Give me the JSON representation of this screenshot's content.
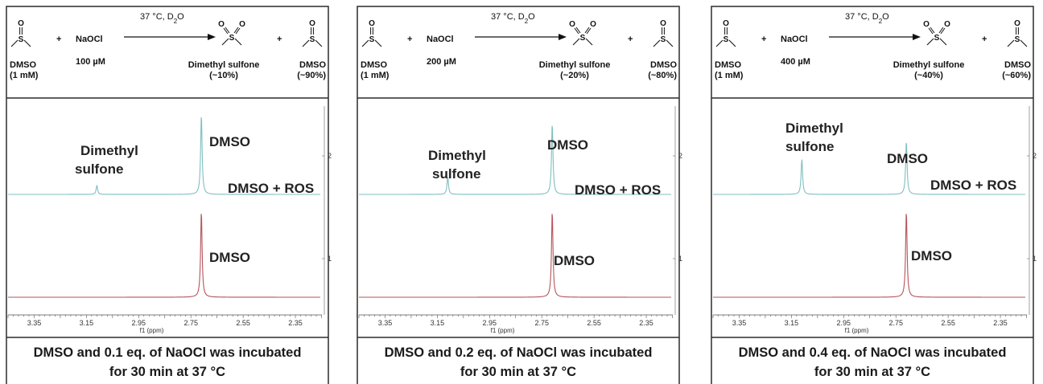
{
  "panels": [
    {
      "reaction": {
        "reactant_name": "DMSO",
        "reactant_amount": "(1 mM)",
        "plus": "+",
        "reagent": "NaOCl",
        "reagent_amount": "100 µM",
        "conditions": "37 °C, D",
        "conditions_sub": "2",
        "conditions_tail": "O",
        "product_name": "Dimethyl sulfone",
        "product_amount": "(~10%)",
        "remaining_name": "DMSO",
        "remaining_amount": "(~90%)"
      },
      "labels": {
        "sulfone_line1": "Dimethyl",
        "sulfone_line2": "sulfone",
        "dmso_top": "DMSO",
        "dmso_ros": "DMSO + ROS",
        "dmso_bottom": "DMSO"
      },
      "caption_line1": "DMSO and 0.1 eq. of NaOCl was incubated",
      "caption_line2": "for 30 min at 37 °C"
    },
    {
      "reaction": {
        "reactant_name": "DMSO",
        "reactant_amount": "(1 mM)",
        "plus": "+",
        "reagent": "NaOCl",
        "reagent_amount": "200 µM",
        "conditions": "37 °C, D",
        "conditions_sub": "2",
        "conditions_tail": "O",
        "product_name": "Dimethyl sulfone",
        "product_amount": "(~20%)",
        "remaining_name": "DMSO",
        "remaining_amount": "(~80%)"
      },
      "labels": {
        "sulfone_line1": "Dimethyl",
        "sulfone_line2": "sulfone",
        "dmso_top": "DMSO",
        "dmso_ros": "DMSO + ROS",
        "dmso_bottom": "DMSO"
      },
      "caption_line1": "DMSO and 0.2 eq. of NaOCl was incubated",
      "caption_line2": "for 30 min at 37 °C"
    },
    {
      "reaction": {
        "reactant_name": "DMSO",
        "reactant_amount": "(1 mM)",
        "plus": "+",
        "reagent": "NaOCl",
        "reagent_amount": "400 µM",
        "conditions": "37 °C, D",
        "conditions_sub": "2",
        "conditions_tail": "O",
        "product_name": "Dimethyl sulfone",
        "product_amount": "(~40%)",
        "remaining_name": "DMSO",
        "remaining_amount": "(~60%)"
      },
      "labels": {
        "sulfone_line1": "Dimethyl",
        "sulfone_line2": "sulfone",
        "dmso_top": "DMSO",
        "dmso_ros": "DMSO + ROS",
        "dmso_bottom": "DMSO"
      },
      "caption_line1": "DMSO and 0.4 eq. of NaOCl was incubated",
      "caption_line2": "for 30 min at 37 °C"
    }
  ],
  "colors": {
    "teal_trace": "#7fbfc0",
    "red_trace": "#b5545a",
    "frame": "#2b2b2b"
  },
  "chart_data": [
    {
      "type": "line",
      "xlabel": "f1 (ppm)",
      "ylabel": "",
      "xlim": [
        3.45,
        2.23
      ],
      "x_reversed": true,
      "xticks": [
        "3.35",
        "3.15",
        "2.95",
        "2.75",
        "2.55",
        "2.35"
      ],
      "series": [
        {
          "name": "2",
          "color": "#7fbfc0",
          "peaks": [
            {
              "x": 3.11,
              "height": 0.1
            },
            {
              "x": 2.71,
              "height": 0.9
            }
          ]
        },
        {
          "name": "1",
          "color": "#b5545a",
          "peaks": [
            {
              "x": 2.71,
              "height": 1.0
            }
          ]
        }
      ]
    },
    {
      "type": "line",
      "xlabel": "f1 (ppm)",
      "ylabel": "",
      "xlim": [
        3.45,
        2.23
      ],
      "x_reversed": true,
      "xticks": [
        "3.35",
        "3.15",
        "2.95",
        "2.75",
        "2.55",
        "2.35"
      ],
      "series": [
        {
          "name": "2",
          "color": "#7fbfc0",
          "peaks": [
            {
              "x": 3.11,
              "height": 0.2
            },
            {
              "x": 2.71,
              "height": 0.8
            }
          ]
        },
        {
          "name": "1",
          "color": "#b5545a",
          "peaks": [
            {
              "x": 2.71,
              "height": 1.0
            }
          ]
        }
      ]
    },
    {
      "type": "line",
      "xlabel": "f1 (ppm)",
      "ylabel": "",
      "xlim": [
        3.45,
        2.23
      ],
      "x_reversed": true,
      "xticks": [
        "3.35",
        "3.15",
        "2.95",
        "2.75",
        "2.55",
        "2.35"
      ],
      "series": [
        {
          "name": "2",
          "color": "#7fbfc0",
          "peaks": [
            {
              "x": 3.11,
              "height": 0.4
            },
            {
              "x": 2.71,
              "height": 0.6
            }
          ]
        },
        {
          "name": "1",
          "color": "#b5545a",
          "peaks": [
            {
              "x": 2.71,
              "height": 1.0
            }
          ]
        }
      ]
    }
  ]
}
